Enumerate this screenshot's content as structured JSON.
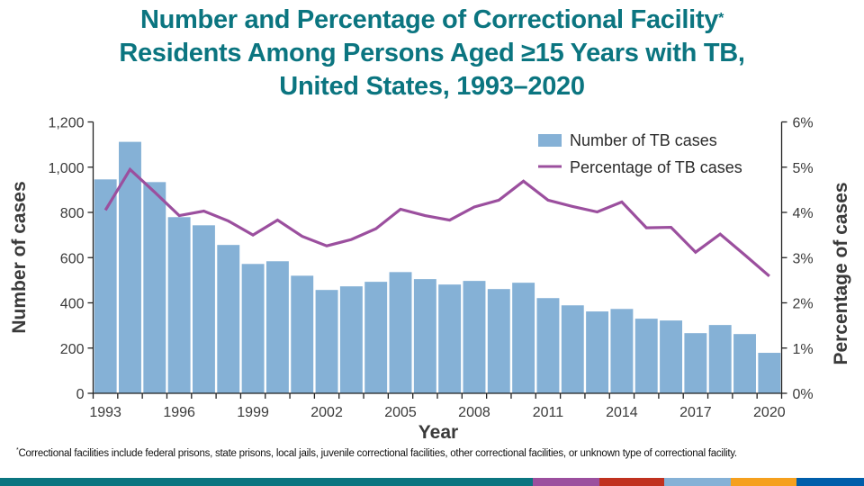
{
  "title": {
    "line1": "Number and Percentage of Correctional Facility",
    "line1_marker": "*",
    "line2": "Residents Among Persons Aged ≥15 Years with TB,",
    "line3": "United States, 1993–2020"
  },
  "footnote": {
    "marker": "*",
    "text": "Correctional facilities include federal prisons, state prisons, local jails, juvenile correctional facilities, other correctional facilities, or unknown type of correctional facility."
  },
  "footer_colors": [
    "#0b7580",
    "#9b4f9e",
    "#c0311f",
    "#85b1d6",
    "#f5a01e",
    "#005eaa"
  ],
  "chart_data": {
    "type": "bar",
    "title": "Number and Percentage of Correctional Facility* Residents Among Persons Aged ≥15 Years with TB, United States, 1993–2020",
    "xlabel": "Year",
    "ylabel": "Number of cases",
    "y2label": "Percentage of cases",
    "categories": [
      1993,
      1994,
      1995,
      1996,
      1997,
      1998,
      1999,
      2000,
      2001,
      2002,
      2003,
      2004,
      2005,
      2006,
      2007,
      2008,
      2009,
      2010,
      2011,
      2012,
      2013,
      2014,
      2015,
      2016,
      2017,
      2018,
      2019,
      2020
    ],
    "x_tick_labels": [
      "1993",
      "1996",
      "1999",
      "2002",
      "2005",
      "2008",
      "2011",
      "2014",
      "2017",
      "2020"
    ],
    "ylim": [
      0,
      1200
    ],
    "y_ticks": [
      0,
      200,
      400,
      600,
      800,
      1000,
      1200
    ],
    "y_tick_labels": [
      "0",
      "200",
      "400",
      "600",
      "800",
      "1,000",
      "1,200"
    ],
    "y2lim": [
      0,
      6
    ],
    "y2_ticks": [
      0,
      1,
      2,
      3,
      4,
      5,
      6
    ],
    "y2_tick_labels": [
      "0%",
      "1%",
      "2%",
      "3%",
      "4%",
      "5%",
      "6%"
    ],
    "legend_position": "top-right",
    "grid": false,
    "series": [
      {
        "name": "Number of TB cases",
        "type": "bar",
        "axis": "left",
        "color": "#85b1d6",
        "values": [
          946,
          1112,
          934,
          779,
          743,
          656,
          572,
          584,
          520,
          457,
          473,
          493,
          536,
          505,
          481,
          497,
          461,
          489,
          421,
          389,
          362,
          373,
          330,
          322,
          266,
          302,
          262,
          179
        ]
      },
      {
        "name": "Percentage of TB cases",
        "type": "line",
        "axis": "right",
        "color": "#9b4f9e",
        "values": [
          4.05,
          4.95,
          4.45,
          3.93,
          4.03,
          3.81,
          3.5,
          3.83,
          3.47,
          3.26,
          3.4,
          3.64,
          4.07,
          3.93,
          3.83,
          4.12,
          4.27,
          4.69,
          4.27,
          4.13,
          4.01,
          4.23,
          3.66,
          3.67,
          3.12,
          3.52,
          3.06,
          2.59
        ]
      }
    ]
  }
}
